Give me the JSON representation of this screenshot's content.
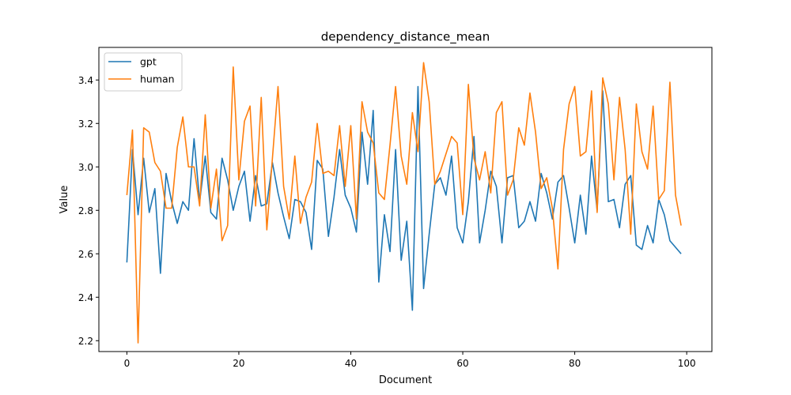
{
  "chart_data": {
    "type": "line",
    "title": "dependency_distance_mean",
    "xlabel": "Document",
    "ylabel": "Value",
    "xlim": [
      -5,
      104.5
    ],
    "ylim": [
      2.15,
      3.55
    ],
    "xticks": [
      0,
      20,
      40,
      60,
      80,
      100
    ],
    "yticks": [
      2.2,
      2.4,
      2.6,
      2.8,
      3.0,
      3.2,
      3.4
    ],
    "ytick_labels": [
      "2.2",
      "2.4",
      "2.6",
      "2.8",
      "3.0",
      "3.2",
      "3.4"
    ],
    "grid": false,
    "legend_position": "upper-left",
    "series": [
      {
        "name": "gpt",
        "color": "#1f77b4",
        "values": [
          2.56,
          3.08,
          2.78,
          3.04,
          2.79,
          2.9,
          2.51,
          2.97,
          2.84,
          2.74,
          2.84,
          2.8,
          3.13,
          2.84,
          3.05,
          2.79,
          2.76,
          3.04,
          2.94,
          2.8,
          2.91,
          2.98,
          2.75,
          2.96,
          2.82,
          2.83,
          3.02,
          2.88,
          2.77,
          2.67,
          2.85,
          2.84,
          2.79,
          2.62,
          3.03,
          2.99,
          2.68,
          2.86,
          3.08,
          2.87,
          2.81,
          2.7,
          3.16,
          2.92,
          3.26,
          2.47,
          2.78,
          2.61,
          3.08,
          2.57,
          2.75,
          2.34,
          3.37,
          2.44,
          2.69,
          2.92,
          2.95,
          2.87,
          3.05,
          2.72,
          2.65,
          2.84,
          3.14,
          2.65,
          2.8,
          2.98,
          2.91,
          2.65,
          2.95,
          2.96,
          2.72,
          2.75,
          2.84,
          2.75,
          2.97,
          2.88,
          2.76,
          2.93,
          2.96,
          2.81,
          2.65,
          2.87,
          2.69,
          3.05,
          2.8,
          3.35,
          2.84,
          2.85,
          2.72,
          2.92,
          2.96,
          2.64,
          2.62,
          2.73,
          2.65,
          2.85,
          2.78,
          2.66,
          2.63,
          2.6
        ]
      },
      {
        "name": "human",
        "color": "#ff7f0e",
        "values": [
          2.87,
          3.17,
          2.19,
          3.18,
          3.16,
          3.02,
          2.98,
          2.81,
          2.81,
          3.09,
          3.23,
          3.0,
          3.0,
          2.82,
          3.24,
          2.81,
          2.99,
          2.66,
          2.73,
          3.46,
          2.94,
          3.21,
          3.28,
          2.82,
          3.32,
          2.71,
          3.04,
          3.37,
          2.91,
          2.76,
          3.05,
          2.74,
          2.86,
          2.93,
          3.2,
          2.97,
          2.98,
          2.96,
          3.19,
          2.91,
          3.19,
          2.76,
          3.3,
          3.16,
          3.11,
          2.88,
          2.85,
          3.1,
          3.37,
          3.05,
          2.92,
          3.25,
          3.07,
          3.48,
          3.3,
          2.92,
          2.98,
          3.06,
          3.14,
          3.11,
          2.78,
          3.38,
          3.04,
          2.94,
          3.07,
          2.88,
          3.25,
          3.3,
          2.87,
          2.94,
          3.18,
          3.1,
          3.34,
          3.16,
          2.9,
          2.95,
          2.81,
          2.53,
          3.08,
          3.29,
          3.37,
          3.05,
          3.07,
          3.35,
          2.79,
          3.41,
          3.29,
          2.94,
          3.32,
          3.08,
          2.69,
          3.29,
          3.07,
          2.99,
          3.28,
          2.85,
          2.89,
          3.39,
          2.87,
          2.73
        ]
      }
    ]
  }
}
